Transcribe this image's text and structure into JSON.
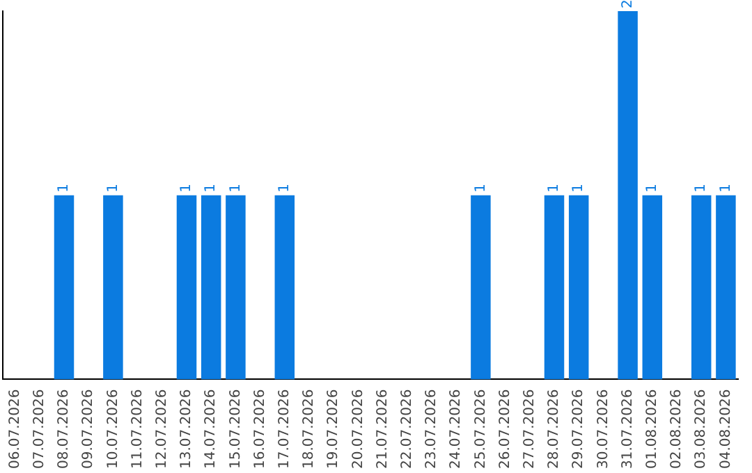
{
  "chart_data": {
    "type": "bar",
    "categories": [
      "06.07.2026",
      "07.07.2026",
      "08.07.2026",
      "09.07.2026",
      "10.07.2026",
      "11.07.2026",
      "12.07.2026",
      "13.07.2026",
      "14.07.2026",
      "15.07.2026",
      "16.07.2026",
      "17.07.2026",
      "18.07.2026",
      "19.07.2026",
      "20.07.2026",
      "21.07.2026",
      "22.07.2026",
      "23.07.2026",
      "24.07.2026",
      "25.07.2026",
      "26.07.2026",
      "27.07.2026",
      "28.07.2026",
      "29.07.2026",
      "30.07.2026",
      "31.07.2026",
      "01.08.2026",
      "02.08.2026",
      "03.08.2026",
      "04.08.2026"
    ],
    "values": [
      0,
      0,
      1,
      0,
      1,
      0,
      0,
      1,
      1,
      1,
      0,
      1,
      0,
      0,
      0,
      0,
      0,
      0,
      0,
      1,
      0,
      0,
      1,
      1,
      0,
      2,
      1,
      0,
      1,
      1
    ],
    "value_labels": [
      null,
      null,
      "1",
      null,
      "1",
      null,
      null,
      "1",
      "1",
      "1",
      null,
      "1",
      null,
      null,
      null,
      null,
      null,
      null,
      null,
      "1",
      null,
      null,
      "1",
      "1",
      null,
      "2",
      "1",
      null,
      "1",
      "1"
    ],
    "color": "#0b7be0",
    "grid": false,
    "legend": false
  }
}
